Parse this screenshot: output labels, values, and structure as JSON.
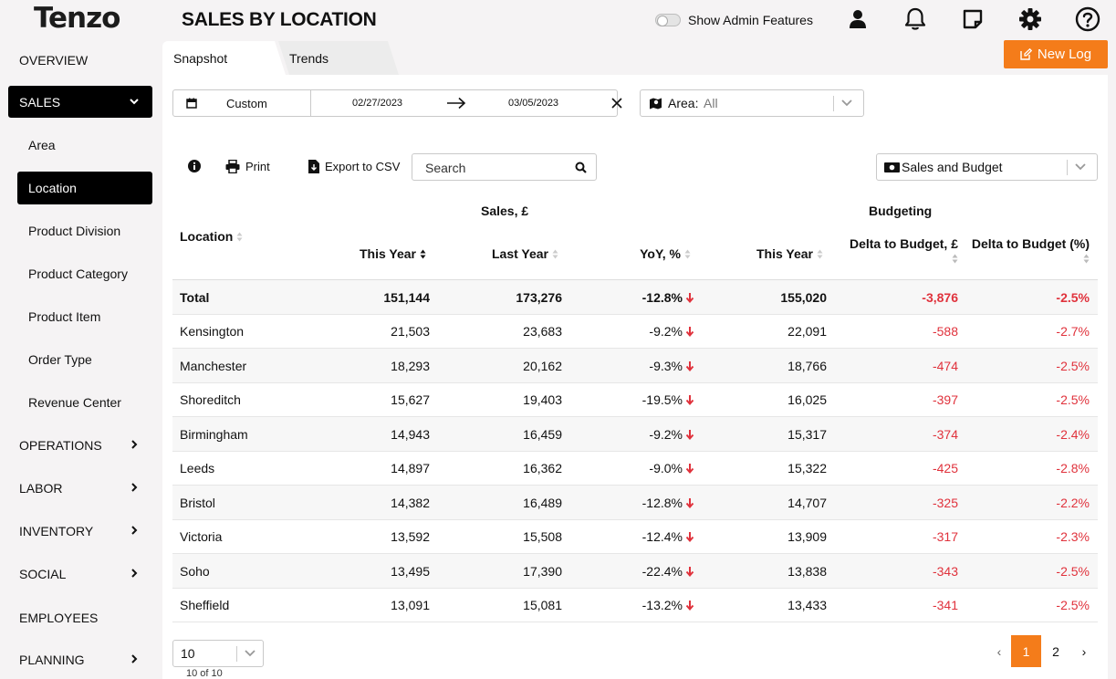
{
  "header": {
    "logo": "Tenzo",
    "title": "SALES BY LOCATION",
    "admin_label": "Show Admin Features"
  },
  "sidebar": {
    "overview": "OVERVIEW",
    "sales": "SALES",
    "sales_items": [
      "Area",
      "Location",
      "Product Division",
      "Product Category",
      "Product Item",
      "Order Type",
      "Revenue Center"
    ],
    "operations": "OPERATIONS",
    "labor": "LABOR",
    "inventory": "INVENTORY",
    "social": "SOCIAL",
    "employees": "EMPLOYEES",
    "planning": "PLANNING"
  },
  "tabs": {
    "snapshot": "Snapshot",
    "trends": "Trends"
  },
  "new_log": "New Log",
  "filters": {
    "date_mode": "Custom",
    "date_start": "02/27/2023",
    "date_end": "03/05/2023",
    "area_label": "Area:",
    "area_value": "All"
  },
  "toolbar": {
    "print": "Print",
    "export": "Export to CSV",
    "search_placeholder": "Search",
    "mode": "Sales and Budget"
  },
  "table": {
    "group_sales": "Sales, £",
    "group_budget": "Budgeting",
    "col_location": "Location",
    "col_this_year": "This Year",
    "col_last_year": "Last Year",
    "col_yoy": "YoY, %",
    "col_budget_this_year": "This Year",
    "col_delta": "Delta to Budget, £",
    "col_delta_pct": "Delta to Budget (%)",
    "rows": [
      [
        "Total",
        "151,144",
        "173,276",
        "-12.8%",
        "155,020",
        "-3,876",
        "-2.5%"
      ],
      [
        "Kensington",
        "21,503",
        "23,683",
        "-9.2%",
        "22,091",
        "-588",
        "-2.7%"
      ],
      [
        "Manchester",
        "18,293",
        "20,162",
        "-9.3%",
        "18,766",
        "-474",
        "-2.5%"
      ],
      [
        "Shoreditch",
        "15,627",
        "19,403",
        "-19.5%",
        "16,025",
        "-397",
        "-2.5%"
      ],
      [
        "Birmingham",
        "14,943",
        "16,459",
        "-9.2%",
        "15,317",
        "-374",
        "-2.4%"
      ],
      [
        "Leeds",
        "14,897",
        "16,362",
        "-9.0%",
        "15,322",
        "-425",
        "-2.8%"
      ],
      [
        "Bristol",
        "14,382",
        "16,489",
        "-12.8%",
        "14,707",
        "-325",
        "-2.2%"
      ],
      [
        "Victoria",
        "13,592",
        "15,508",
        "-12.4%",
        "13,909",
        "-317",
        "-2.3%"
      ],
      [
        "Soho",
        "13,495",
        "17,390",
        "-22.4%",
        "13,838",
        "-343",
        "-2.5%"
      ],
      [
        "Sheffield",
        "13,091",
        "15,081",
        "-13.2%",
        "13,433",
        "-341",
        "-2.5%"
      ]
    ]
  },
  "footer": {
    "page_size": "10",
    "count": "10 of 10",
    "prev": "‹",
    "page1": "1",
    "page2": "2",
    "next": "›"
  }
}
